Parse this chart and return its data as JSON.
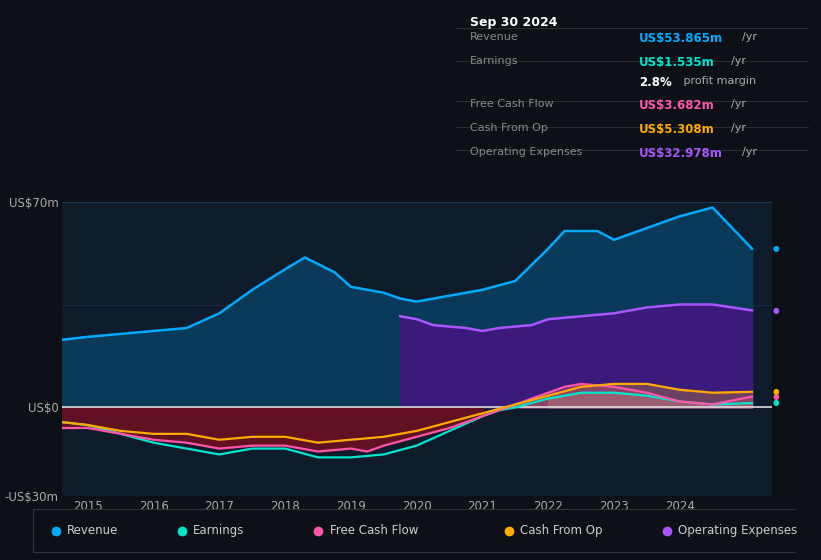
{
  "bg_color": "#0d1117",
  "plot_bg_color": "#0d1b2a",
  "title_box": {
    "date": "Sep 30 2024",
    "rows": [
      {
        "label": "Revenue",
        "value": "US$53.865m",
        "value_color": "#00aaff",
        "extra": "/yr"
      },
      {
        "label": "Earnings",
        "value": "US$1.535m",
        "value_color": "#00e5cc",
        "extra": "/yr"
      },
      {
        "label": "",
        "value": "2.8%",
        "value_color": "#ffffff",
        "extra": " profit margin"
      },
      {
        "label": "Free Cash Flow",
        "value": "US$3.682m",
        "value_color": "#ff55aa",
        "extra": "/yr"
      },
      {
        "label": "Cash From Op",
        "value": "US$5.308m",
        "value_color": "#ffaa00",
        "extra": "/yr"
      },
      {
        "label": "Operating Expenses",
        "value": "US$32.978m",
        "value_color": "#aa55ff",
        "extra": "/yr"
      }
    ]
  },
  "ylim": [
    -30,
    70
  ],
  "xlim": [
    2014.6,
    2025.4
  ],
  "xtick_years": [
    2015,
    2016,
    2017,
    2018,
    2019,
    2020,
    2021,
    2022,
    2023,
    2024
  ],
  "revenue_color": "#00aaff",
  "revenue_fill": "#0a3a5a",
  "op_exp_color": "#aa55ff",
  "op_exp_fill": "#3a1a7a",
  "free_cf_fill_neg": "#6b1020",
  "earnings_color": "#00e5cc",
  "free_cf_color": "#ff55aa",
  "cash_op_color": "#ffaa00",
  "earnings_fill_pos": "#888888",
  "cash_op_fill_pos": "#aaaaaa",
  "free_cf_fill_pos": "#cc6688",
  "zero_line_color": "#dddddd",
  "grid_color": "#1e3a5a",
  "legend_items": [
    {
      "label": "Revenue",
      "color": "#00aaff"
    },
    {
      "label": "Earnings",
      "color": "#00e5cc"
    },
    {
      "label": "Free Cash Flow",
      "color": "#ff55aa"
    },
    {
      "label": "Cash From Op",
      "color": "#ffaa00"
    },
    {
      "label": "Operating Expenses",
      "color": "#aa55ff"
    }
  ],
  "revenue": {
    "x": [
      2014.6,
      2015.0,
      2015.5,
      2016.0,
      2016.5,
      2017.0,
      2017.5,
      2018.0,
      2018.3,
      2018.75,
      2019.0,
      2019.5,
      2019.75,
      2020.0,
      2020.5,
      2021.0,
      2021.5,
      2022.0,
      2022.25,
      2022.75,
      2023.0,
      2023.5,
      2024.0,
      2024.5,
      2025.1
    ],
    "y": [
      23,
      24,
      25,
      26,
      27,
      32,
      40,
      47,
      51,
      46,
      41,
      39,
      37,
      36,
      38,
      40,
      43,
      54,
      60,
      60,
      57,
      61,
      65,
      68,
      54
    ]
  },
  "op_expenses": {
    "x": [
      2019.75,
      2020.0,
      2020.25,
      2020.75,
      2021.0,
      2021.25,
      2021.75,
      2022.0,
      2022.5,
      2023.0,
      2023.5,
      2024.0,
      2024.5,
      2025.1
    ],
    "y": [
      31,
      30,
      28,
      27,
      26,
      27,
      28,
      30,
      31,
      32,
      34,
      35,
      35,
      33
    ]
  },
  "earnings": {
    "x": [
      2014.6,
      2015.0,
      2015.5,
      2016.0,
      2016.5,
      2017.0,
      2017.5,
      2018.0,
      2018.5,
      2019.0,
      2019.5,
      2020.0,
      2020.5,
      2021.0,
      2021.25,
      2021.5,
      2022.0,
      2022.5,
      2023.0,
      2023.5,
      2024.0,
      2024.5,
      2025.1
    ],
    "y": [
      -5,
      -6,
      -9,
      -12,
      -14,
      -16,
      -14,
      -14,
      -17,
      -17,
      -16,
      -13,
      -8,
      -3,
      -1,
      0,
      3,
      5,
      5,
      4,
      2,
      1,
      1.5
    ]
  },
  "free_cf": {
    "x": [
      2014.6,
      2015.0,
      2015.5,
      2016.0,
      2016.5,
      2017.0,
      2017.5,
      2018.0,
      2018.5,
      2019.0,
      2019.25,
      2019.5,
      2020.0,
      2020.5,
      2021.0,
      2021.5,
      2022.0,
      2022.25,
      2022.5,
      2023.0,
      2023.5,
      2024.0,
      2024.5,
      2025.1
    ],
    "y": [
      -7,
      -7,
      -9,
      -11,
      -12,
      -14,
      -13,
      -13,
      -15,
      -14,
      -15,
      -13,
      -10,
      -7,
      -3,
      1,
      5,
      7,
      8,
      7,
      5,
      2,
      1,
      3.7
    ]
  },
  "cash_op": {
    "x": [
      2014.6,
      2015.0,
      2015.5,
      2016.0,
      2016.5,
      2017.0,
      2017.5,
      2018.0,
      2018.5,
      2019.0,
      2019.5,
      2020.0,
      2020.5,
      2021.0,
      2021.5,
      2022.0,
      2022.5,
      2023.0,
      2023.5,
      2024.0,
      2024.5,
      2025.1
    ],
    "y": [
      -5,
      -6,
      -8,
      -9,
      -9,
      -11,
      -10,
      -10,
      -12,
      -11,
      -10,
      -8,
      -5,
      -2,
      1,
      4,
      7,
      8,
      8,
      6,
      5,
      5.3
    ]
  }
}
